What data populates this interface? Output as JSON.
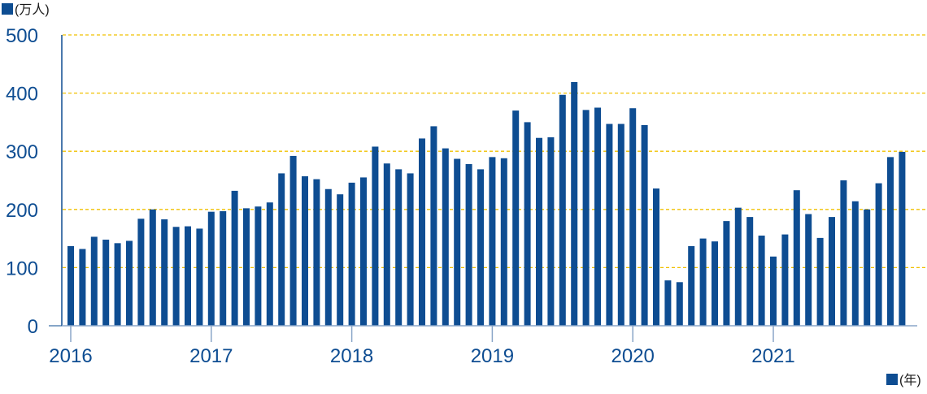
{
  "chart_data": {
    "type": "bar",
    "y_unit_label": "(万人)",
    "x_unit_label": "(年)",
    "ylim": [
      0,
      500
    ],
    "y_ticks": [
      "0",
      "100",
      "200",
      "300",
      "400",
      "500"
    ],
    "year_labels": [
      "2016",
      "2017",
      "2018",
      "2019",
      "2020",
      "2021"
    ],
    "grid": true,
    "colors": {
      "bar": "#0e4d92",
      "grid": "#f0c000",
      "axis": "#0e4d92",
      "axis_line": "#8aa6c8",
      "text": "#0e4d92"
    },
    "series": [
      {
        "values": [
          137,
          132,
          153,
          148,
          142,
          146,
          184,
          200,
          183,
          170,
          171,
          167,
          196,
          197,
          232,
          202,
          205,
          212,
          262,
          292,
          257,
          252,
          235,
          226,
          246,
          255,
          308,
          279,
          269,
          262,
          322,
          343,
          305,
          287,
          278,
          269,
          290,
          288,
          370,
          350,
          323,
          324,
          397,
          419,
          371,
          375,
          347,
          347,
          374,
          345,
          236,
          78,
          75,
          137,
          150,
          145,
          180,
          203,
          187,
          155,
          119,
          157,
          233,
          192,
          151,
          187,
          250,
          214,
          200,
          245,
          290,
          299
        ]
      }
    ]
  }
}
